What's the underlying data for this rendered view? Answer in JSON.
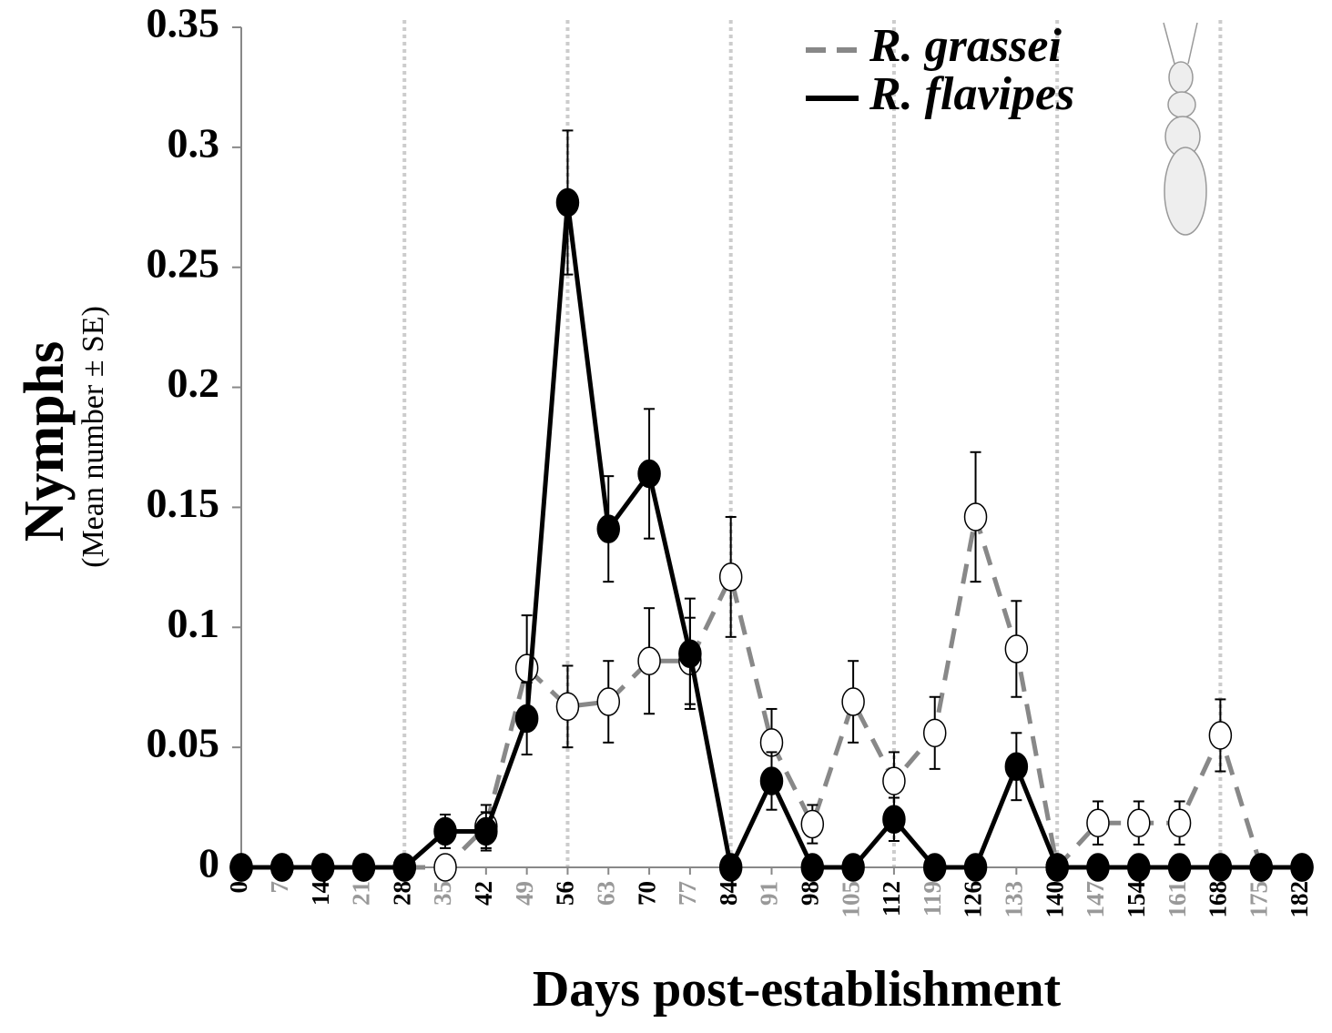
{
  "chart_data": {
    "type": "line",
    "y_title": "Nymphs",
    "y_subtitle": "(Mean number ± SE)",
    "x_title": "Days post-establishment",
    "x": [
      0,
      7,
      14,
      21,
      28,
      35,
      42,
      49,
      56,
      63,
      70,
      77,
      84,
      91,
      98,
      105,
      112,
      119,
      126,
      133,
      140,
      147,
      154,
      161,
      168,
      175,
      182
    ],
    "xlim": [
      0,
      182
    ],
    "xticks": [
      0,
      7,
      14,
      21,
      28,
      35,
      42,
      49,
      56,
      63,
      70,
      77,
      84,
      91,
      98,
      105,
      112,
      119,
      126,
      133,
      140,
      147,
      154,
      161,
      168,
      175,
      182
    ],
    "xtick_label_colors": [
      "#000",
      "#999",
      "#000",
      "#999",
      "#000",
      "#999",
      "#000",
      "#999",
      "#000",
      "#999",
      "#000",
      "#999",
      "#000",
      "#999",
      "#000",
      "#999",
      "#000",
      "#999",
      "#000",
      "#999",
      "#000",
      "#999",
      "#000",
      "#999",
      "#000",
      "#999",
      "#000"
    ],
    "xgrid": [
      28,
      56,
      84,
      112,
      140,
      168
    ],
    "ylim": [
      0,
      0.35
    ],
    "yticks": [
      0,
      0.05,
      0.1,
      0.15,
      0.2,
      0.25,
      0.3,
      0.35
    ],
    "legend": "top-right",
    "series": [
      {
        "name": "R. grassei",
        "color": "#888888",
        "line_style": "dashed",
        "marker_fill": "#ffffff",
        "values": [
          0,
          0,
          0,
          0,
          0,
          0,
          0.017,
          0.083,
          0.067,
          0.069,
          0.086,
          0.086,
          0.121,
          0.052,
          0.018,
          0.069,
          0.036,
          0.056,
          0.146,
          0.091,
          0,
          0.0185,
          0.0185,
          0.0185,
          0.055,
          0,
          0
        ],
        "errors": [
          0,
          0,
          0,
          0,
          0,
          0,
          0.009,
          0.022,
          0.017,
          0.017,
          0.022,
          0.018,
          0.025,
          0.014,
          0.008,
          0.017,
          0.012,
          0.015,
          0.027,
          0.02,
          0,
          0.009,
          0.009,
          0.009,
          0.015,
          0,
          0
        ]
      },
      {
        "name": "R. flavipes",
        "color": "#000000",
        "line_style": "solid",
        "marker_fill": "#000000",
        "values": [
          0,
          0,
          0,
          0,
          0,
          0.015,
          0.015,
          0.062,
          0.277,
          0.141,
          0.164,
          0.089,
          0,
          0.036,
          0,
          0,
          0.02,
          0,
          0,
          0.042,
          0,
          0,
          0,
          0,
          0,
          0,
          0
        ],
        "errors": [
          0,
          0,
          0,
          0,
          0,
          0.007,
          0.008,
          0.015,
          0.03,
          0.022,
          0.027,
          0.023,
          0,
          0.012,
          0,
          0,
          0.009,
          0,
          0,
          0.014,
          0,
          0,
          0,
          0,
          0,
          0,
          0
        ]
      }
    ]
  }
}
